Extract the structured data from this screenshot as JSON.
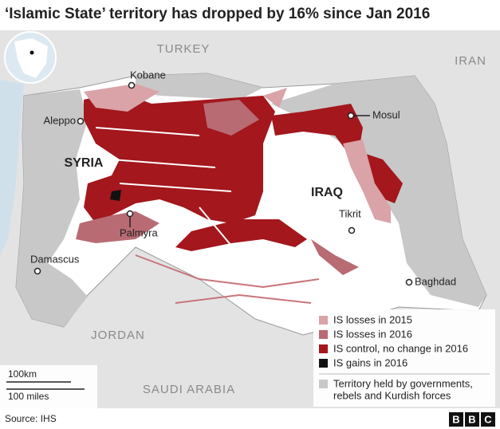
{
  "header": {
    "title": "‘Islamic State’ territory has dropped by 16% since Jan 2016"
  },
  "map": {
    "countries": [
      "TURKEY",
      "IRAN",
      "SYRIA",
      "IRAQ",
      "JORDAN",
      "SAUDI ARABIA"
    ],
    "cities": [
      "Kobane",
      "Aleppo",
      "Mosul",
      "Tikrit",
      "Palmyra",
      "Damascus",
      "Baghdad"
    ]
  },
  "legend": {
    "items": [
      {
        "label": "IS losses in 2015",
        "color": "#d9a3a8"
      },
      {
        "label": "IS losses in 2016",
        "color": "#b86b73"
      },
      {
        "label": "IS control, no change in 2016",
        "color": "#a3171d"
      },
      {
        "label": "IS gains in 2016",
        "color": "#111111"
      }
    ],
    "note": {
      "lines": [
        "Territory held by governments,",
        "rebels and Kurdish forces"
      ],
      "color": "#c8c8c8"
    }
  },
  "scale": {
    "km": "100km",
    "miles": "100 miles"
  },
  "footer": {
    "source": "Source: IHS",
    "logo": [
      "B",
      "B",
      "C"
    ]
  }
}
